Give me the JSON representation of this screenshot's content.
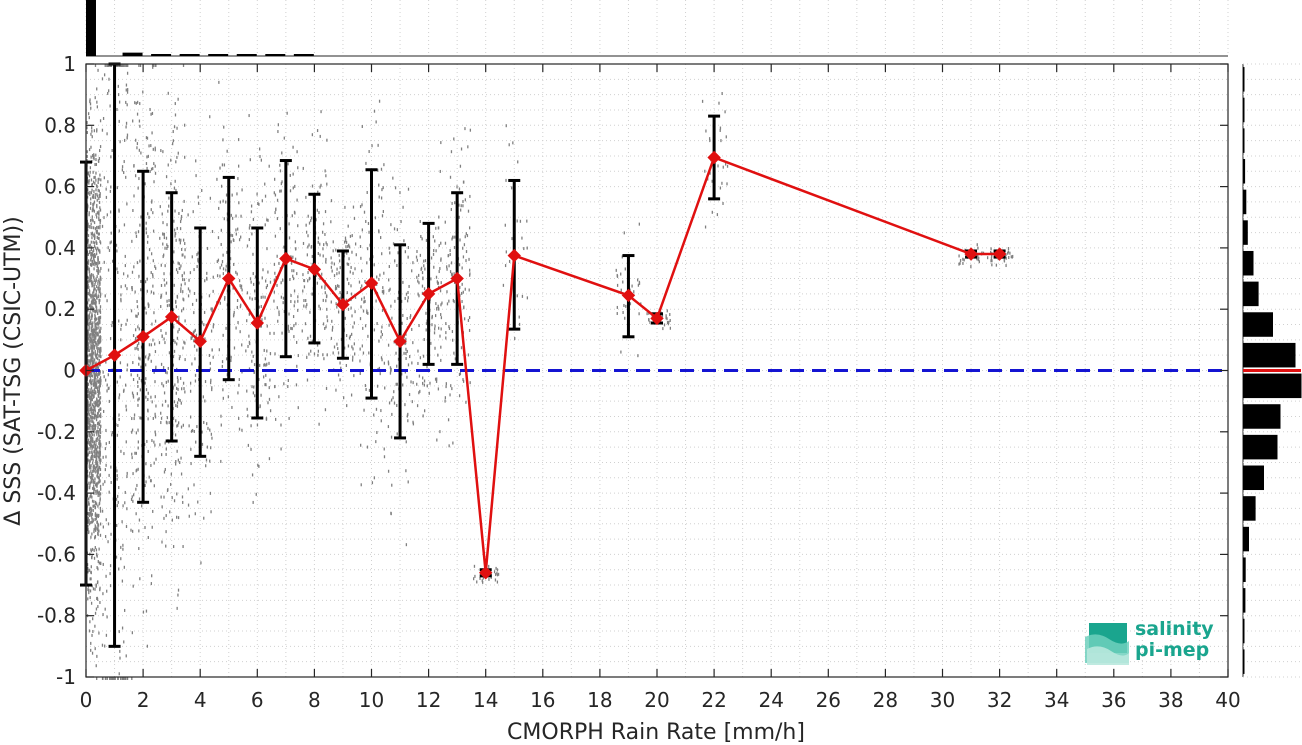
{
  "chart_data": {
    "type": "scatter",
    "xlabel": "CMORPH Rain Rate [mm/h]",
    "ylabel": "Δ SSS (SAT-TSG (CSIC-UTM))",
    "xlim": [
      0,
      40
    ],
    "ylim": [
      -1,
      1
    ],
    "x_ticks": [
      "0",
      "2",
      "4",
      "6",
      "8",
      "10",
      "12",
      "14",
      "16",
      "18",
      "20",
      "22",
      "24",
      "26",
      "28",
      "30",
      "32",
      "34",
      "36",
      "38",
      "40"
    ],
    "y_ticks": [
      "1",
      "0.8",
      "0.6",
      "0.4",
      "0.2",
      "0",
      "-0.2",
      "-0.4",
      "-0.6",
      "-0.8",
      "-1"
    ],
    "grid": true,
    "reference_line": {
      "y": 0,
      "style": "dashed",
      "color": "#1414d2"
    },
    "series": [
      {
        "style": "line-diamond",
        "color": "#e01010",
        "x": [
          0,
          1,
          2,
          3,
          4,
          5,
          6,
          7,
          8,
          9,
          10,
          11,
          12,
          13,
          14,
          15,
          19,
          20,
          22,
          31,
          32
        ],
        "y": [
          0.0,
          0.05,
          0.11,
          0.175,
          0.095,
          0.3,
          0.155,
          0.365,
          0.33,
          0.215,
          0.285,
          0.095,
          0.25,
          0.3,
          -0.66,
          0.375,
          0.245,
          0.17,
          0.695,
          0.38,
          0.38
        ],
        "err_low": [
          -0.7,
          -0.9,
          -0.43,
          -0.23,
          -0.28,
          -0.03,
          -0.155,
          0.045,
          0.09,
          0.04,
          -0.09,
          -0.22,
          0.02,
          0.02,
          -0.67,
          0.135,
          0.11,
          0.155,
          0.56,
          0.37,
          0.37
        ],
        "err_high": [
          0.68,
          1.0,
          0.65,
          0.58,
          0.465,
          0.63,
          0.465,
          0.685,
          0.575,
          0.39,
          0.655,
          0.41,
          0.48,
          0.58,
          -0.65,
          0.62,
          0.375,
          0.185,
          0.83,
          0.39,
          0.39
        ]
      }
    ],
    "raw_scatter_color": "#808080",
    "marginal_top_histogram": {
      "bin_width": 1,
      "relative_heights": [
        1.0,
        0.06,
        0.02,
        0.015,
        0.012,
        0.01,
        0.008,
        0.006
      ]
    },
    "marginal_right_histogram": {
      "bins": [
        -0.95,
        -0.85,
        -0.75,
        -0.65,
        -0.55,
        -0.45,
        -0.35,
        -0.25,
        -0.15,
        -0.05,
        0.05,
        0.15,
        0.25,
        0.35,
        0.45,
        0.55,
        0.65,
        0.75,
        0.85,
        0.95
      ],
      "relative_widths": [
        0.02,
        0.04,
        0.08,
        0.09,
        0.2,
        0.42,
        0.7,
        1.15,
        1.25,
        1.95,
        1.75,
        1.0,
        0.52,
        0.35,
        0.16,
        0.11,
        0.07,
        0.05,
        0.04,
        0.03
      ],
      "mean_marker_color": "#e01010"
    }
  },
  "logo": {
    "line1": "salinity",
    "line2": "pi-mep",
    "brand_color": "#1aa58e"
  }
}
